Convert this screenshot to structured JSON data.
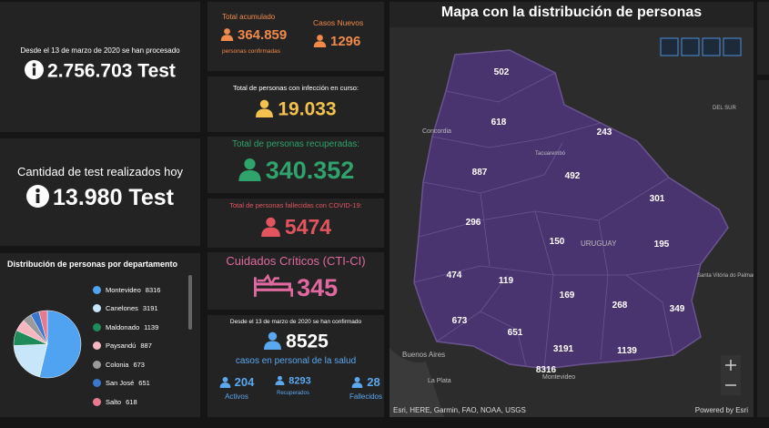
{
  "tests": {
    "since_label": "Desde el 13 de marzo de 2020 se han procesado",
    "total": "2.756.703 Test",
    "today_label": "Cantidad de test realizados hoy",
    "today": "13.980 Test"
  },
  "cases": {
    "accum_label": "Total acumulado",
    "accum": "364.859",
    "accum_sub": "personas confirmadas",
    "new_label": "Casos Nuevos",
    "new": "1296",
    "active_label": "Total de personas con infección en curso:",
    "active": "19.033",
    "recovered_label": "Total de personas recuperadas:",
    "recovered": "340.352",
    "deaths_label": "Total de personas fallecidas con COVID-19:",
    "deaths": "5474",
    "cti_label": "Cuidados Críticos (CTI-CI)",
    "cti": "345"
  },
  "health": {
    "since_label": "Desde el 13 de marzo de 2020 se han confirmado",
    "total": "8525",
    "sub": "casos en personal de la salud",
    "items": [
      {
        "value": "204",
        "label": "Activos"
      },
      {
        "value": "8293",
        "label": "Recuperados"
      },
      {
        "value": "28",
        "label": "Fallecidos"
      }
    ]
  },
  "distribution": {
    "type": "pie",
    "title": "Distribución de personas por departamento",
    "categories": [
      "Montevideo",
      "Canelones",
      "Maldonado",
      "Paysandú",
      "Colonia",
      "San José",
      "Salto"
    ],
    "values": [
      8316,
      3191,
      1139,
      887,
      673,
      651,
      618
    ],
    "colors": [
      "#4fa3f0",
      "#c8e6fa",
      "#1f8a5a",
      "#f7b7c0",
      "#9a9a9a",
      "#3a78d0",
      "#e87a90"
    ]
  },
  "map": {
    "title": "Mapa con la distribución de personas",
    "values": [
      "502",
      "618",
      "243",
      "887",
      "492",
      "301",
      "296",
      "150",
      "195",
      "474",
      "119",
      "169",
      "268",
      "349",
      "673",
      "651",
      "3191",
      "1139",
      "8316"
    ],
    "places": [
      "Concordia",
      "Tacuarembó",
      "URUGUAY",
      "Buenos Aires",
      "La Plata",
      "Montevideo",
      "Santa Vitória do Palmar",
      "DEL SUR"
    ],
    "attribution": "Esri, HERE, Garmin, FAO, NOAA, USGS",
    "powered_by": "Powered by Esri"
  }
}
